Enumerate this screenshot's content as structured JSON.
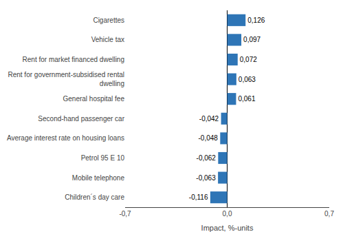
{
  "chart_data": {
    "type": "bar",
    "orientation": "horizontal",
    "categories": [
      "Children´s day care",
      "Mobile telephone",
      "Petrol 95 E 10",
      "Average interest rate on housing loans",
      "Second-hand passenger car",
      "General hospital fee",
      "Rent for government-subsidised rental\ndwelling",
      "Rent for market financed dwelling",
      "Vehicle tax",
      "Cigarettes"
    ],
    "values": [
      -0.116,
      -0.063,
      -0.062,
      -0.048,
      -0.042,
      0.061,
      0.063,
      0.072,
      0.097,
      0.126
    ],
    "value_labels": [
      "-0,116",
      "-0,063",
      "-0,062",
      "-0,048",
      "-0,042",
      "0,061",
      "0,063",
      "0,072",
      "0,097",
      "0,126"
    ],
    "data_labels": true,
    "color": "#2E75B6",
    "xlabel": "Impact, %-units",
    "xlim": [
      -0.7,
      0.7
    ],
    "xticks": [
      {
        "value": -0.7,
        "label": "-0,7"
      },
      {
        "value": 0.0,
        "label": "0,0"
      },
      {
        "value": 0.7,
        "label": "0,7"
      }
    ],
    "grid": true
  }
}
